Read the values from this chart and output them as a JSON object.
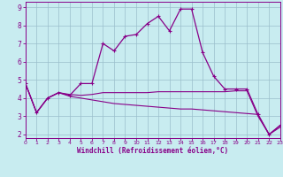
{
  "xlabel": "Windchill (Refroidissement éolien,°C)",
  "background_color": "#c8ecf0",
  "grid_color": "#9bbfcc",
  "line_color": "#880088",
  "x_hours": [
    0,
    1,
    2,
    3,
    4,
    5,
    6,
    7,
    8,
    9,
    10,
    11,
    12,
    13,
    14,
    15,
    16,
    17,
    18,
    19,
    20,
    21,
    22,
    23
  ],
  "series1": [
    4.8,
    3.2,
    4.0,
    4.3,
    4.15,
    4.8,
    4.8,
    7.0,
    6.6,
    7.4,
    7.5,
    8.1,
    8.5,
    7.7,
    8.9,
    8.9,
    6.5,
    5.2,
    4.5,
    4.5,
    4.5,
    3.1,
    2.0,
    2.5
  ],
  "series2": [
    4.8,
    3.2,
    4.0,
    4.3,
    4.2,
    4.15,
    4.2,
    4.3,
    4.3,
    4.3,
    4.3,
    4.3,
    4.35,
    4.35,
    4.35,
    4.35,
    4.35,
    4.35,
    4.35,
    4.4,
    4.4,
    3.0,
    2.0,
    2.5
  ],
  "series3": [
    4.8,
    3.2,
    4.0,
    4.3,
    4.1,
    4.0,
    3.9,
    3.8,
    3.7,
    3.65,
    3.6,
    3.55,
    3.5,
    3.45,
    3.4,
    3.4,
    3.35,
    3.3,
    3.25,
    3.2,
    3.15,
    3.1,
    2.0,
    2.4
  ],
  "xlim": [
    0,
    23
  ],
  "ylim": [
    1.8,
    9.3
  ],
  "yticks": [
    2,
    3,
    4,
    5,
    6,
    7,
    8,
    9
  ],
  "xticks": [
    0,
    1,
    2,
    3,
    4,
    5,
    6,
    7,
    8,
    9,
    10,
    11,
    12,
    13,
    14,
    15,
    16,
    17,
    18,
    19,
    20,
    21,
    22,
    23
  ]
}
